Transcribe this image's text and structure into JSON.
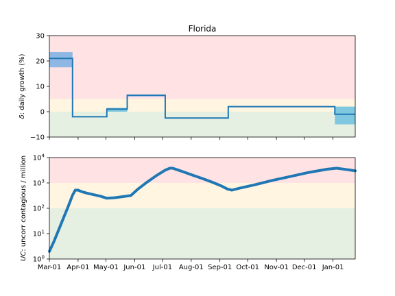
{
  "chart_data": [
    {
      "type": "line",
      "title": "Florida",
      "ylabel_symbol": "δ",
      "ylabel_text": ": daily growth (%)",
      "ylim": [
        -10,
        30
      ],
      "yticks": [
        -10,
        0,
        10,
        20,
        30
      ],
      "ytick_labels": [
        "−10",
        "0",
        "10",
        "20",
        "30"
      ],
      "xlim": [
        0,
        330
      ],
      "bands": [
        {
          "from": -10,
          "to": 0,
          "color": "#e5f0e2"
        },
        {
          "from": 0,
          "to": 5,
          "color": "#fff5e0"
        },
        {
          "from": 5,
          "to": 30,
          "color": "#ffe2e4"
        }
      ],
      "series": [
        {
          "line_color": "#1f77b4",
          "steps": [
            {
              "x0": 0,
              "x1": 25,
              "y": 21,
              "lo": 17.5,
              "hi": 23.5,
              "band_color": "#8fb7e3"
            },
            {
              "x0": 25,
              "x1": 62,
              "y": -2,
              "lo": -2,
              "hi": -2,
              "band_color": "#8fb7e3"
            },
            {
              "x0": 62,
              "x1": 84,
              "y": 1,
              "lo": 0,
              "hi": 1.5,
              "band_color": "#7fc8e0"
            },
            {
              "x0": 84,
              "x1": 125,
              "y": 6.5,
              "lo": 6,
              "hi": 6.8,
              "band_color": "#8fb7e3"
            },
            {
              "x0": 125,
              "x1": 193,
              "y": -2.5,
              "lo": -2.5,
              "hi": -2.5,
              "band_color": "#8fb7e3"
            },
            {
              "x0": 193,
              "x1": 308,
              "y": 2,
              "lo": 2,
              "hi": 2,
              "band_color": "#8fb7e3"
            },
            {
              "x0": 308,
              "x1": 330,
              "y": -1,
              "lo": -5,
              "hi": 2,
              "band_color": "#7fc8e0"
            }
          ]
        }
      ]
    },
    {
      "type": "line",
      "ylabel_symbol": "UC",
      "ylabel_text": ": uncorr contagious / million",
      "yscale": "log",
      "ylim": [
        1,
        10000
      ],
      "yticks": [
        1,
        10,
        100,
        1000,
        10000
      ],
      "ytick_exponents": [
        "0",
        "1",
        "2",
        "3",
        "4"
      ],
      "xlim": [
        0,
        330
      ],
      "xticks": [
        0,
        31,
        61,
        92,
        122,
        153,
        184,
        214,
        245,
        275,
        306
      ],
      "xtick_labels": [
        "Mar-01",
        "Apr-01",
        "May-01",
        "Jun-01",
        "Jul-01",
        "Aug-01",
        "Sep-01",
        "Oct-01",
        "Nov-01",
        "Dec-01",
        "Jan-01"
      ],
      "bands": [
        {
          "from": 1,
          "to": 100,
          "color": "#e5f0e2"
        },
        {
          "from": 100,
          "to": 1000,
          "color": "#fff5e0"
        },
        {
          "from": 1000,
          "to": 10000,
          "color": "#ffe2e4"
        }
      ],
      "series": [
        {
          "color": "#1f77b4",
          "x": [
            0,
            5,
            10,
            15,
            20,
            25,
            28,
            31,
            35,
            40,
            50,
            55,
            62,
            70,
            80,
            88,
            95,
            105,
            115,
            125,
            130,
            133,
            137,
            145,
            155,
            165,
            175,
            185,
            192,
            197,
            205,
            220,
            240,
            260,
            280,
            300,
            310,
            320,
            330
          ],
          "y": [
            2,
            5,
            14,
            40,
            110,
            330,
            520,
            520,
            450,
            400,
            330,
            300,
            250,
            260,
            290,
            320,
            550,
            1050,
            1900,
            3200,
            3800,
            3800,
            3400,
            2700,
            2000,
            1500,
            1100,
            780,
            580,
            520,
            620,
            820,
            1250,
            1800,
            2600,
            3500,
            3800,
            3400,
            3000
          ]
        }
      ]
    }
  ]
}
